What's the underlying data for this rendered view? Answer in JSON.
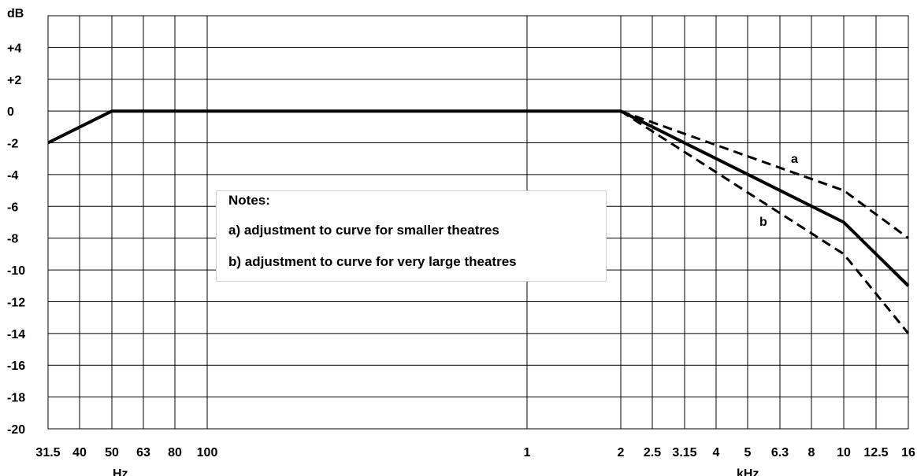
{
  "chart_data": {
    "type": "line",
    "x_scale": "log",
    "xlim_hz": [
      31.5,
      16000
    ],
    "ylim": [
      -20,
      6
    ],
    "ylabel": "dB",
    "y_ticks": [
      "+4",
      "+2",
      "0",
      "-2",
      "-4",
      "-6",
      "-8",
      "-10",
      "-12",
      "-14",
      "-16",
      "-18",
      "-20"
    ],
    "x_ticks": [
      {
        "hz": 31.5,
        "label": "31.5"
      },
      {
        "hz": 40,
        "label": "40"
      },
      {
        "hz": 50,
        "label": "50"
      },
      {
        "hz": 63,
        "label": "63"
      },
      {
        "hz": 80,
        "label": "80"
      },
      {
        "hz": 100,
        "label": "100"
      },
      {
        "hz": 1000,
        "label": "1"
      },
      {
        "hz": 2000,
        "label": "2"
      },
      {
        "hz": 2500,
        "label": "2.5"
      },
      {
        "hz": 3150,
        "label": "3.15"
      },
      {
        "hz": 4000,
        "label": "4"
      },
      {
        "hz": 5000,
        "label": "5"
      },
      {
        "hz": 6300,
        "label": "6.3"
      },
      {
        "hz": 8000,
        "label": "8"
      },
      {
        "hz": 10000,
        "label": "10"
      },
      {
        "hz": 12500,
        "label": "12.5"
      },
      {
        "hz": 16000,
        "label": "16"
      }
    ],
    "xlabel_hz": "Hz",
    "xlabel_khz": "kHz",
    "grid": true,
    "series": [
      {
        "style": "solid",
        "x": [
          31.5,
          50,
          2000,
          10000,
          16000
        ],
        "y": [
          -2,
          0,
          0,
          -7,
          -11
        ]
      },
      {
        "name": "a",
        "style": "dashed",
        "x": [
          2000,
          10000,
          16000
        ],
        "y": [
          0,
          -5,
          -8
        ]
      },
      {
        "name": "b",
        "style": "dashed",
        "x": [
          2000,
          10000,
          16000
        ],
        "y": [
          0,
          -9,
          -14
        ]
      }
    ],
    "notes": {
      "title": "Notes:",
      "a": "a) adjustment to curve for smaller theatres",
      "b": "b) adjustment to curve for very large theatres"
    },
    "color": "#000000"
  }
}
